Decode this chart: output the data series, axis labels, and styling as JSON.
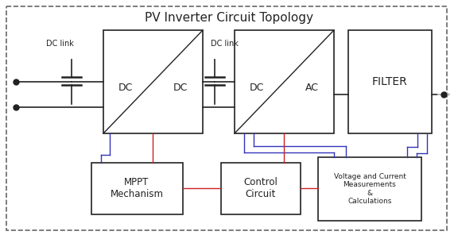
{
  "title": "PV Inverter Circuit Topology",
  "bg_color": "#ffffff",
  "outer_border_color": "#666666",
  "blue_color": "#3333bb",
  "red_color": "#cc2222",
  "black_color": "#222222",
  "gray_color": "#bbbbbb",
  "dc_link1_label": "DC link",
  "dc_link2_label": "DC link",
  "filter_label": "FILTER",
  "mppt_label": "MPPT\nMechanism",
  "ctrl_label": "Control\nCircuit",
  "meas_label": "Voltage and Current\nMeasurements\n&\nCalculations"
}
